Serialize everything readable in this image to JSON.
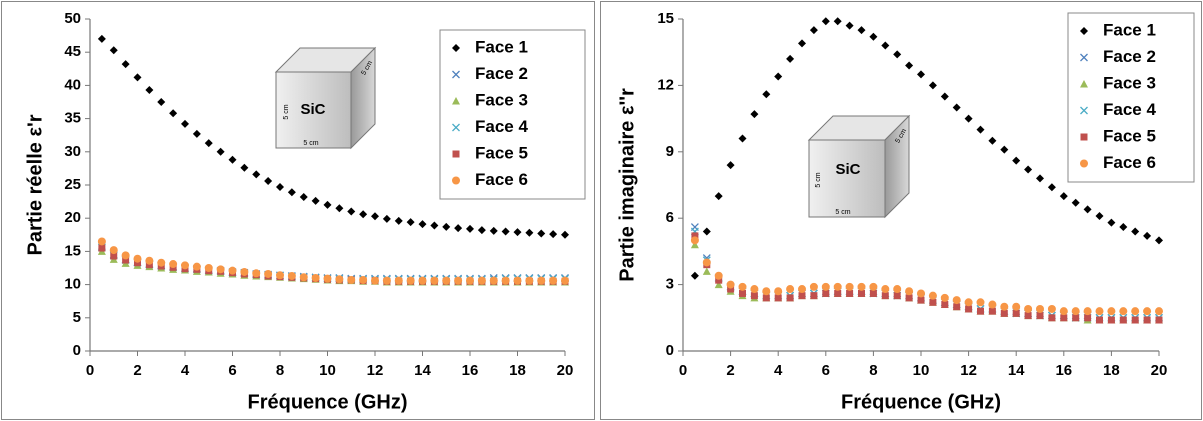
{
  "chart_data": [
    {
      "type": "scatter",
      "xlabel": "Fréquence (GHz)",
      "ylabel": "Partie réelle ε'r",
      "xlim": [
        0,
        20
      ],
      "ylim": [
        0,
        50
      ],
      "xticks": [
        0,
        2,
        4,
        6,
        8,
        10,
        12,
        14,
        16,
        18,
        20
      ],
      "yticks": [
        0,
        5,
        10,
        15,
        20,
        25,
        30,
        35,
        40,
        45,
        50
      ],
      "inset_labels": [
        "SiC",
        "5 cm",
        "5 cm",
        "5 cm"
      ],
      "x": [
        0.5,
        1,
        1.5,
        2,
        2.5,
        3,
        3.5,
        4,
        4.5,
        5,
        5.5,
        6,
        6.5,
        7,
        7.5,
        8,
        8.5,
        9,
        9.5,
        10,
        10.5,
        11,
        11.5,
        12,
        12.5,
        13,
        13.5,
        14,
        14.5,
        15,
        15.5,
        16,
        16.5,
        17,
        17.5,
        18,
        18.5,
        19,
        19.5,
        20
      ],
      "series": [
        {
          "name": "Face 1",
          "color": "#000000",
          "marker": "diamond",
          "values": [
            47.0,
            45.3,
            43.2,
            41.2,
            39.3,
            37.5,
            35.8,
            34.2,
            32.7,
            31.3,
            30.0,
            28.8,
            27.6,
            26.6,
            25.6,
            24.7,
            23.9,
            23.2,
            22.6,
            22.0,
            21.5,
            21.0,
            20.6,
            20.3,
            19.9,
            19.6,
            19.4,
            19.1,
            18.9,
            18.7,
            18.5,
            18.4,
            18.2,
            18.1,
            18.0,
            17.9,
            17.8,
            17.7,
            17.6,
            17.5
          ]
        },
        {
          "name": "Face 2",
          "color": "#4f81bd",
          "marker": "x",
          "values": [
            15.8,
            14.5,
            13.8,
            13.4,
            13.1,
            12.9,
            12.7,
            12.5,
            12.4,
            12.2,
            12.1,
            11.9,
            11.8,
            11.6,
            11.5,
            11.4,
            11.3,
            11.2,
            11.1,
            11.0,
            11.0,
            10.9,
            10.9,
            10.9,
            10.9,
            10.9,
            10.9,
            10.9,
            10.9,
            10.9,
            10.9,
            10.9,
            10.9,
            11.0,
            11.0,
            11.0,
            11.0,
            11.0,
            11.0,
            11.0
          ]
        },
        {
          "name": "Face 3",
          "color": "#9bbb59",
          "marker": "triangle",
          "values": [
            15.0,
            13.8,
            13.2,
            12.9,
            12.7,
            12.5,
            12.3,
            12.2,
            12.0,
            11.9,
            11.7,
            11.6,
            11.4,
            11.3,
            11.2,
            11.1,
            11.0,
            10.9,
            10.8,
            10.7,
            10.6,
            10.6,
            10.5,
            10.5,
            10.4,
            10.4,
            10.4,
            10.4,
            10.4,
            10.4,
            10.4,
            10.4,
            10.4,
            10.4,
            10.4,
            10.4,
            10.4,
            10.4,
            10.4,
            10.4
          ]
        },
        {
          "name": "Face 4",
          "color": "#4bacc6",
          "marker": "x",
          "values": [
            15.6,
            14.4,
            13.7,
            13.3,
            13.0,
            12.8,
            12.6,
            12.4,
            12.3,
            12.1,
            12.0,
            11.8,
            11.7,
            11.5,
            11.4,
            11.3,
            11.2,
            11.1,
            11.0,
            10.9,
            10.9,
            10.8,
            10.8,
            10.8,
            10.8,
            10.8,
            10.8,
            10.8,
            10.8,
            10.8,
            10.8,
            10.8,
            10.8,
            10.8,
            10.9,
            10.9,
            10.9,
            10.9,
            10.9,
            10.9
          ]
        },
        {
          "name": "Face 5",
          "color": "#c0504d",
          "marker": "square",
          "values": [
            15.5,
            14.3,
            13.7,
            13.3,
            13.0,
            12.8,
            12.6,
            12.4,
            12.3,
            12.1,
            12.0,
            11.8,
            11.6,
            11.5,
            11.3,
            11.2,
            11.1,
            11.0,
            10.9,
            10.8,
            10.7,
            10.7,
            10.6,
            10.6,
            10.5,
            10.5,
            10.5,
            10.5,
            10.5,
            10.5,
            10.5,
            10.5,
            10.5,
            10.5,
            10.5,
            10.5,
            10.5,
            10.5,
            10.5,
            10.5
          ]
        },
        {
          "name": "Face 6",
          "color": "#f79646",
          "marker": "circle",
          "values": [
            16.5,
            15.2,
            14.4,
            13.9,
            13.6,
            13.3,
            13.1,
            12.9,
            12.7,
            12.5,
            12.3,
            12.1,
            11.9,
            11.7,
            11.6,
            11.4,
            11.3,
            11.1,
            11.0,
            10.9,
            10.8,
            10.7,
            10.7,
            10.6,
            10.6,
            10.6,
            10.6,
            10.6,
            10.6,
            10.6,
            10.6,
            10.6,
            10.6,
            10.6,
            10.6,
            10.6,
            10.6,
            10.6,
            10.6,
            10.6
          ]
        }
      ]
    },
    {
      "type": "scatter",
      "xlabel": "Fréquence (GHz)",
      "ylabel": "Partie imaginaire ε''r",
      "xlim": [
        0,
        20
      ],
      "ylim": [
        0,
        15
      ],
      "xticks": [
        0,
        2,
        4,
        6,
        8,
        10,
        12,
        14,
        16,
        18,
        20
      ],
      "yticks": [
        0,
        3,
        6,
        9,
        12,
        15
      ],
      "inset_labels": [
        "SiC",
        "5 cm",
        "5 cm",
        "5 cm"
      ],
      "x": [
        0.5,
        1,
        1.5,
        2,
        2.5,
        3,
        3.5,
        4,
        4.5,
        5,
        5.5,
        6,
        6.5,
        7,
        7.5,
        8,
        8.5,
        9,
        9.5,
        10,
        10.5,
        11,
        11.5,
        12,
        12.5,
        13,
        13.5,
        14,
        14.5,
        15,
        15.5,
        16,
        16.5,
        17,
        17.5,
        18,
        18.5,
        19,
        19.5,
        20
      ],
      "series": [
        {
          "name": "Face 1",
          "color": "#000000",
          "marker": "diamond",
          "values": [
            3.4,
            5.4,
            7.0,
            8.4,
            9.6,
            10.7,
            11.6,
            12.4,
            13.2,
            13.9,
            14.5,
            14.9,
            14.9,
            14.7,
            14.5,
            14.2,
            13.8,
            13.4,
            12.9,
            12.5,
            12.0,
            11.5,
            11.0,
            10.5,
            10.0,
            9.5,
            9.1,
            8.6,
            8.2,
            7.8,
            7.4,
            7.0,
            6.7,
            6.4,
            6.1,
            5.8,
            5.6,
            5.4,
            5.2,
            5.0
          ]
        },
        {
          "name": "Face 2",
          "color": "#4f81bd",
          "marker": "x",
          "values": [
            5.6,
            4.2,
            3.3,
            2.9,
            2.7,
            2.6,
            2.5,
            2.5,
            2.5,
            2.6,
            2.6,
            2.7,
            2.7,
            2.7,
            2.7,
            2.7,
            2.6,
            2.6,
            2.5,
            2.4,
            2.3,
            2.2,
            2.1,
            2.0,
            1.9,
            1.9,
            1.8,
            1.8,
            1.7,
            1.7,
            1.6,
            1.6,
            1.6,
            1.6,
            1.5,
            1.5,
            1.5,
            1.5,
            1.5,
            1.5
          ]
        },
        {
          "name": "Face 3",
          "color": "#9bbb59",
          "marker": "triangle",
          "values": [
            4.8,
            3.6,
            3.0,
            2.7,
            2.5,
            2.4,
            2.4,
            2.4,
            2.4,
            2.5,
            2.5,
            2.6,
            2.6,
            2.6,
            2.6,
            2.6,
            2.5,
            2.5,
            2.4,
            2.3,
            2.2,
            2.1,
            2.0,
            1.9,
            1.8,
            1.8,
            1.7,
            1.7,
            1.6,
            1.6,
            1.5,
            1.5,
            1.5,
            1.4,
            1.4,
            1.4,
            1.4,
            1.4,
            1.4,
            1.4
          ]
        },
        {
          "name": "Face 4",
          "color": "#4bacc6",
          "marker": "x",
          "values": [
            5.4,
            4.1,
            3.3,
            2.9,
            2.7,
            2.6,
            2.5,
            2.5,
            2.5,
            2.6,
            2.6,
            2.6,
            2.7,
            2.7,
            2.7,
            2.6,
            2.6,
            2.5,
            2.5,
            2.4,
            2.3,
            2.2,
            2.1,
            2.0,
            1.9,
            1.9,
            1.8,
            1.7,
            1.7,
            1.6,
            1.6,
            1.6,
            1.5,
            1.5,
            1.5,
            1.5,
            1.5,
            1.5,
            1.5,
            1.5
          ]
        },
        {
          "name": "Face 5",
          "color": "#c0504d",
          "marker": "square",
          "values": [
            5.2,
            3.9,
            3.2,
            2.8,
            2.6,
            2.5,
            2.4,
            2.4,
            2.4,
            2.5,
            2.5,
            2.6,
            2.6,
            2.6,
            2.6,
            2.6,
            2.5,
            2.5,
            2.4,
            2.3,
            2.2,
            2.1,
            2.0,
            1.9,
            1.8,
            1.8,
            1.7,
            1.7,
            1.6,
            1.6,
            1.5,
            1.5,
            1.5,
            1.5,
            1.4,
            1.4,
            1.4,
            1.4,
            1.4,
            1.4
          ]
        },
        {
          "name": "Face 6",
          "color": "#f79646",
          "marker": "circle",
          "values": [
            5.0,
            4.0,
            3.4,
            3.0,
            2.9,
            2.8,
            2.7,
            2.7,
            2.8,
            2.8,
            2.9,
            2.9,
            2.9,
            2.9,
            2.9,
            2.9,
            2.8,
            2.8,
            2.7,
            2.6,
            2.5,
            2.4,
            2.3,
            2.2,
            2.2,
            2.1,
            2.0,
            2.0,
            1.9,
            1.9,
            1.9,
            1.8,
            1.8,
            1.8,
            1.8,
            1.8,
            1.8,
            1.8,
            1.8,
            1.8
          ]
        }
      ]
    }
  ]
}
